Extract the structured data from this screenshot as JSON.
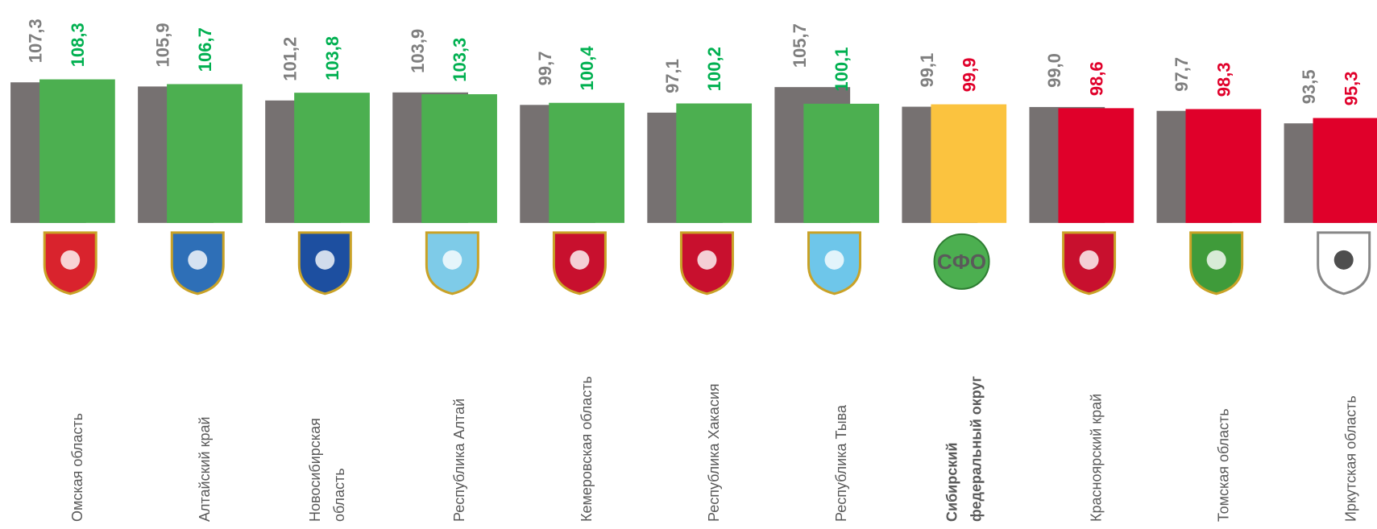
{
  "chart_data": {
    "type": "bar",
    "categories": [
      "Омская область",
      "Алтайский край",
      "Новосибирская\nобласть",
      "Республика Алтай",
      "Кемеровская область",
      "Республика Хакасия",
      "Республика Тыва",
      "Сибирский\nфедеральный округ",
      "Красноярский край",
      "Томская область",
      "Иркутская область"
    ],
    "highlight": 7,
    "badge": "СФО",
    "ylim": [
      60,
      135
    ],
    "series": [
      {
        "color": "#767171",
        "label_color": "#7f7f7f",
        "values": [
          107.3,
          105.9,
          101.2,
          103.9,
          99.7,
          97.1,
          105.7,
          99.1,
          99.0,
          97.7,
          93.5
        ],
        "value_labels": [
          "107,3",
          "105,9",
          "101,2",
          "103,9",
          "99,7",
          "97,1",
          "105,7",
          "99,1",
          "99,0",
          "97,7",
          "93,5"
        ]
      },
      {
        "colors": [
          "#4caf50",
          "#4caf50",
          "#4caf50",
          "#4caf50",
          "#4caf50",
          "#4caf50",
          "#4caf50",
          "#fbc33f",
          "#e0002a",
          "#e0002a",
          "#e0002a"
        ],
        "label_colors": [
          "#00b050",
          "#00b050",
          "#00b050",
          "#00b050",
          "#00b050",
          "#00b050",
          "#00b050",
          "#e0002a",
          "#e0002a",
          "#e0002a",
          "#e0002a"
        ],
        "values": [
          108.3,
          106.7,
          103.8,
          103.3,
          100.4,
          100.2,
          100.1,
          99.9,
          98.6,
          98.3,
          95.3
        ],
        "value_labels": [
          "108,3",
          "106,7",
          "103,8",
          "103,3",
          "100,4",
          "100,2",
          "100,1",
          "99,9",
          "98,6",
          "98,3",
          "95,3"
        ]
      }
    ]
  }
}
